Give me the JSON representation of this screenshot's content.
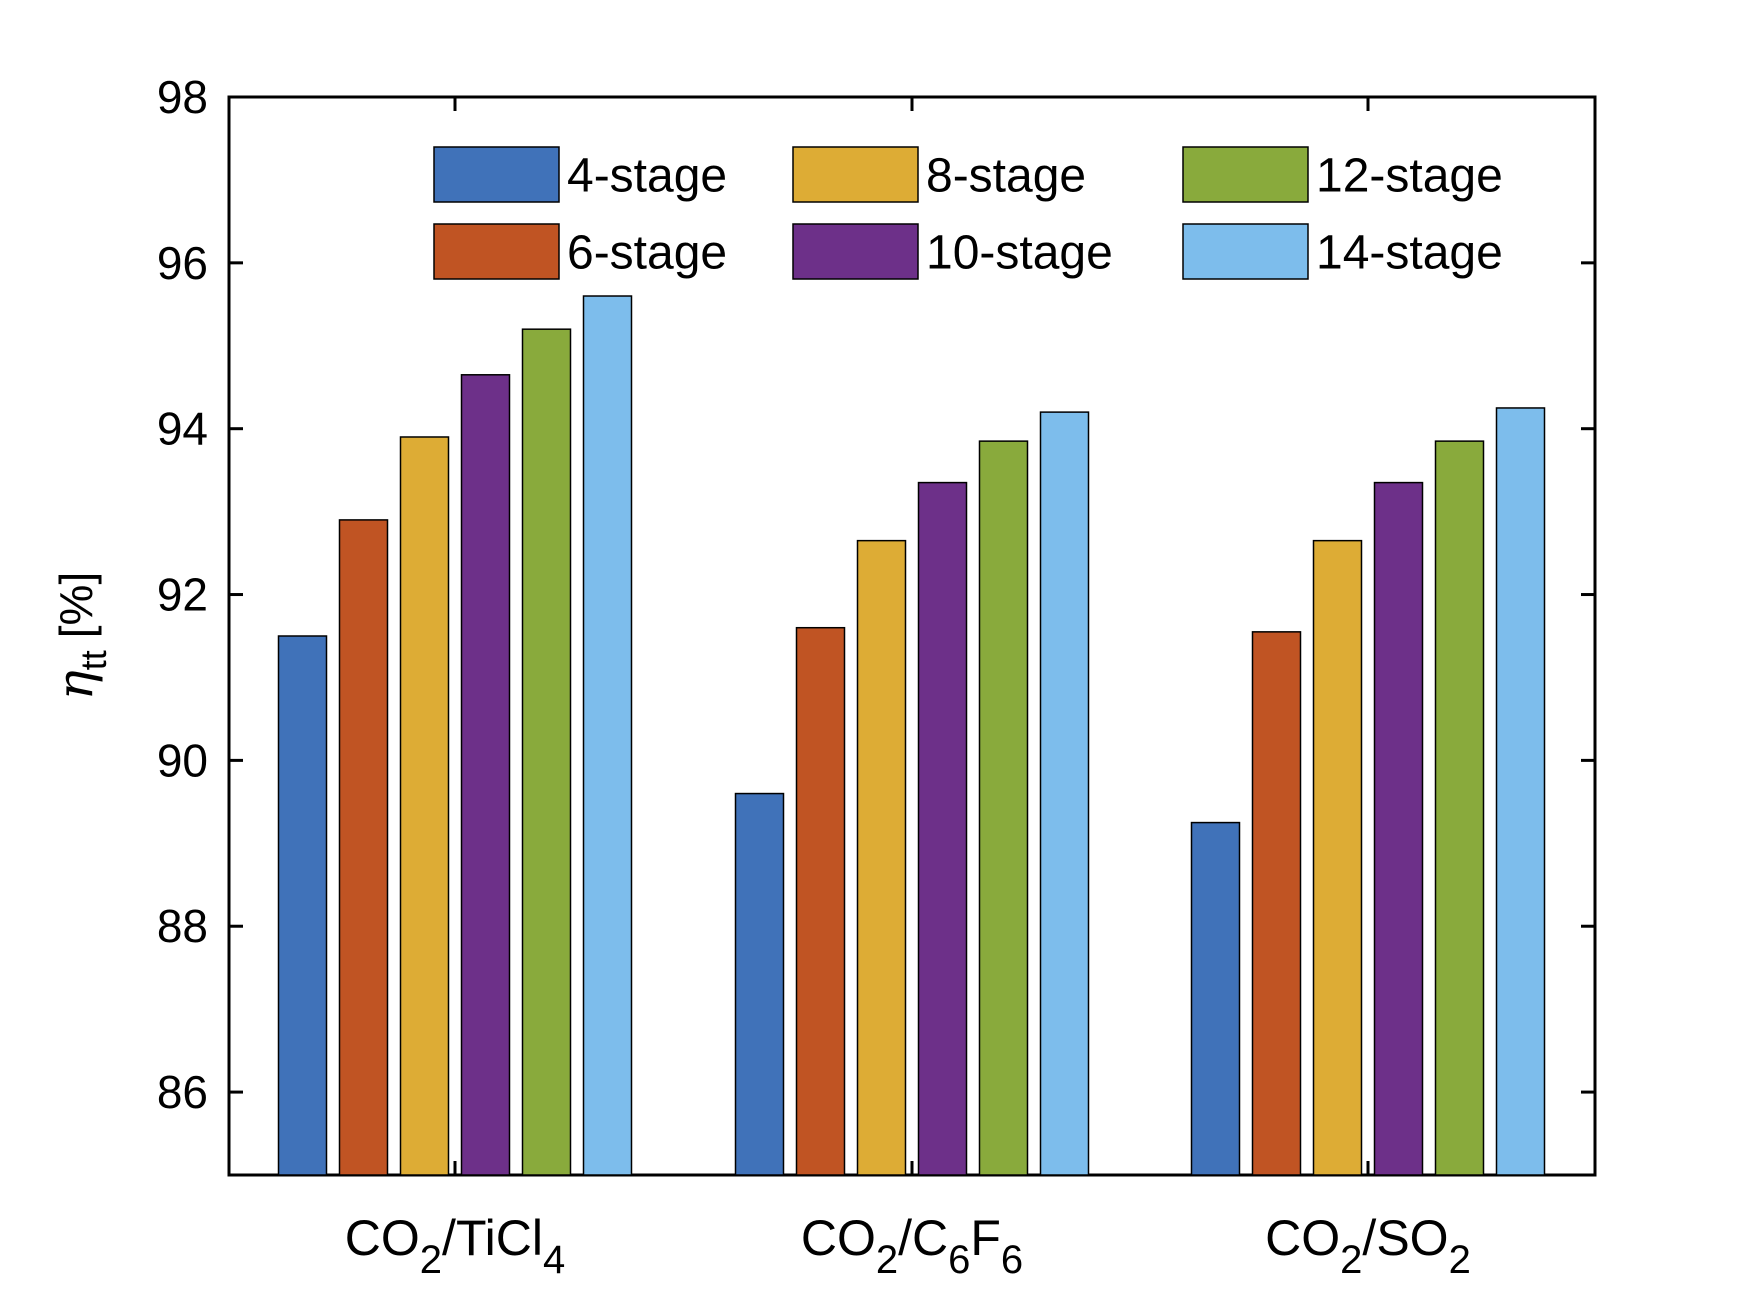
{
  "chart_data": {
    "type": "bar",
    "categories": [
      {
        "main": "CO",
        "s1": "2",
        "mid": "/TiCl",
        "s2": "4",
        "mid2": "",
        "s3": ""
      },
      {
        "main": "CO",
        "s1": "2",
        "mid": "/C",
        "s2": "6",
        "mid2": "F",
        "s3": "6"
      },
      {
        "main": "CO",
        "s1": "2",
        "mid": "/SO",
        "s2": "2",
        "mid2": "",
        "s3": ""
      }
    ],
    "series": [
      {
        "name": "4-stage",
        "color": "#4072b9",
        "values": [
          91.5,
          89.6,
          89.25
        ]
      },
      {
        "name": "6-stage",
        "color": "#c05423",
        "values": [
          92.9,
          91.6,
          91.55
        ]
      },
      {
        "name": "8-stage",
        "color": "#ddac35",
        "values": [
          93.9,
          92.65,
          92.65
        ]
      },
      {
        "name": "10-stage",
        "color": "#6d3089",
        "values": [
          94.65,
          93.35,
          93.35
        ]
      },
      {
        "name": "12-stage",
        "color": "#89aa3c",
        "values": [
          95.2,
          93.85,
          93.85
        ]
      },
      {
        "name": "14-stage",
        "color": "#7dbdec",
        "values": [
          95.6,
          94.2,
          94.25
        ]
      }
    ],
    "ylim": [
      85,
      98
    ],
    "yticks": [
      86,
      88,
      90,
      92,
      94,
      96,
      98
    ],
    "ylabel": {
      "symbol": "η",
      "sub": "tt",
      "unit": "[%]"
    },
    "xlabel": "",
    "title": "",
    "legend": {
      "placement": "top-right",
      "columns": 3
    },
    "grid": false
  }
}
